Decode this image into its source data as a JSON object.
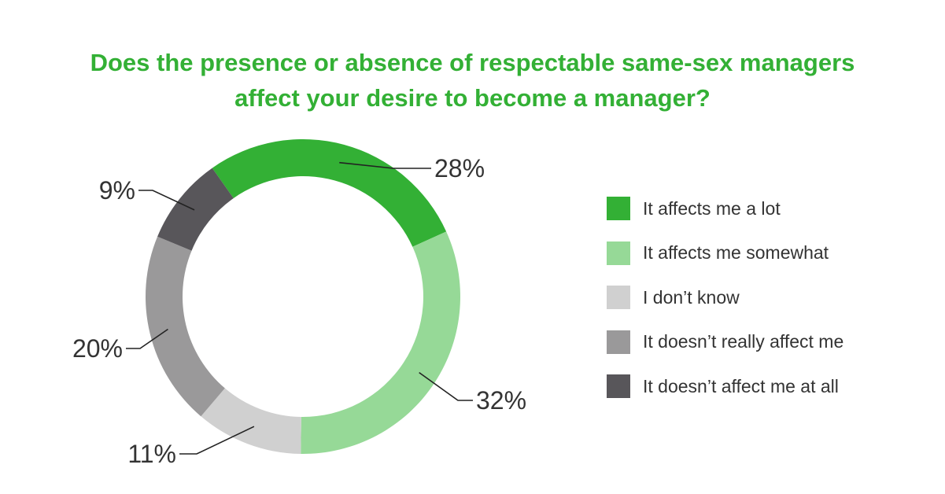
{
  "chart_data": {
    "type": "pie",
    "title": "Does the presence or absence of respectable same-sex managers affect your desire to become a manager?",
    "title_lines": [
      "Does the presence or absence of respectable same-sex managers",
      "affect your desire to become a manager?"
    ],
    "donut": true,
    "legend_position": "right",
    "slices": [
      {
        "label": "It affects me a lot",
        "value": 28,
        "display": "28%",
        "color": "#33b035"
      },
      {
        "label": "It affects me somewhat",
        "value": 32,
        "display": "32%",
        "color": "#96d997"
      },
      {
        "label": "I don’t know",
        "value": 11,
        "display": "11%",
        "color": "#d0d0d0"
      },
      {
        "label": "It doesn’t really affect me",
        "value": 20,
        "display": "20%",
        "color": "#9a999a"
      },
      {
        "label": "It doesn’t affect me at all",
        "value": 9,
        "display": "9%",
        "color": "#58565a"
      }
    ]
  }
}
